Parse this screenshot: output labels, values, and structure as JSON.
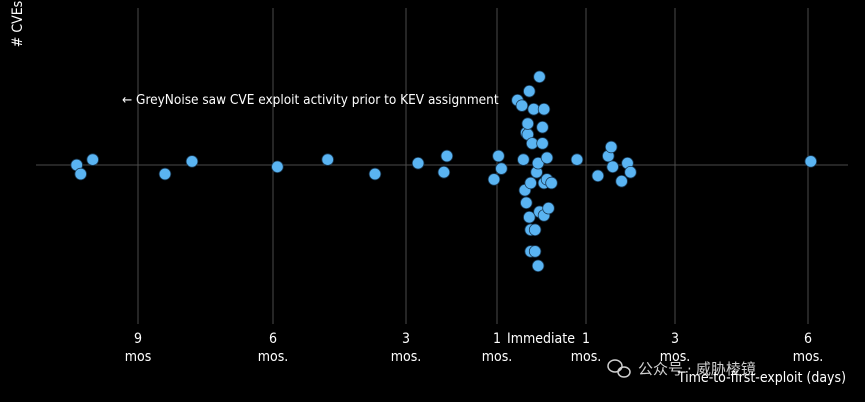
{
  "chart_data": {
    "type": "scatter",
    "subtype": "beeswarm",
    "ylabel": "# CVEs",
    "xlabel": "Time-to-first-exploit (days)",
    "annotation": "← GreyNoise saw CVE exploit activity prior to KEV assignment",
    "grid": true,
    "marker_color": "#5ab4f2",
    "ticks": [
      {
        "top": "9",
        "bottom": "mos",
        "x": -270
      },
      {
        "top": "6",
        "bottom": "mos.",
        "x": -180
      },
      {
        "top": "3",
        "bottom": "mos.",
        "x": -90
      },
      {
        "top": "1",
        "bottom": "mos.",
        "x": -30
      },
      {
        "top": "Immediate",
        "bottom": "",
        "x": 0
      },
      {
        "top": "1",
        "bottom": "mos.",
        "x": 30
      },
      {
        "top": "3",
        "bottom": "mos.",
        "x": 90
      },
      {
        "top": "6",
        "bottom": "mos.",
        "x": 180
      }
    ],
    "points": [
      {
        "x": -316,
        "y": 0
      },
      {
        "x": -313,
        "y": -0.5
      },
      {
        "x": -304,
        "y": 0.3
      },
      {
        "x": -252,
        "y": -0.5
      },
      {
        "x": -234,
        "y": 0.2
      },
      {
        "x": -177,
        "y": -0.1
      },
      {
        "x": -143,
        "y": 0.3
      },
      {
        "x": -111,
        "y": -0.5
      },
      {
        "x": -82,
        "y": 0.1
      },
      {
        "x": -65,
        "y": -0.4
      },
      {
        "x": -63,
        "y": 0.5
      },
      {
        "x": -32,
        "y": -0.8
      },
      {
        "x": -29,
        "y": 0.5
      },
      {
        "x": -27,
        "y": -0.2
      },
      {
        "x": -16,
        "y": 3.6
      },
      {
        "x": -13,
        "y": 3.3
      },
      {
        "x": -10,
        "y": 1.8
      },
      {
        "x": -10,
        "y": -2.1
      },
      {
        "x": -12,
        "y": 0.3
      },
      {
        "x": -11,
        "y": -1.4
      },
      {
        "x": -9,
        "y": 1.7
      },
      {
        "x": -9,
        "y": 2.3
      },
      {
        "x": -8,
        "y": 4.1
      },
      {
        "x": -8,
        "y": -2.9
      },
      {
        "x": -7,
        "y": -4.8
      },
      {
        "x": -7,
        "y": -3.6
      },
      {
        "x": -7,
        "y": -1.0
      },
      {
        "x": -6,
        "y": 1.2
      },
      {
        "x": -5,
        "y": 3.1
      },
      {
        "x": -4,
        "y": -4.8
      },
      {
        "x": -4,
        "y": -3.6
      },
      {
        "x": -3,
        "y": -0.4
      },
      {
        "x": -2,
        "y": 0.1
      },
      {
        "x": -1,
        "y": 4.9
      },
      {
        "x": -2,
        "y": -5.6
      },
      {
        "x": -1,
        "y": -2.6
      },
      {
        "x": 1,
        "y": 1.2
      },
      {
        "x": 1,
        "y": 2.1
      },
      {
        "x": 2,
        "y": 3.1
      },
      {
        "x": 2,
        "y": -1.0
      },
      {
        "x": 2,
        "y": -2.8
      },
      {
        "x": 4,
        "y": -0.8
      },
      {
        "x": 4,
        "y": 0.4
      },
      {
        "x": 5,
        "y": -2.4
      },
      {
        "x": 7,
        "y": -1.0
      },
      {
        "x": 24,
        "y": 0.3
      },
      {
        "x": 38,
        "y": -0.6
      },
      {
        "x": 45,
        "y": 0.5
      },
      {
        "x": 47,
        "y": 1.0
      },
      {
        "x": 48,
        "y": -0.1
      },
      {
        "x": 54,
        "y": -0.9
      },
      {
        "x": 58,
        "y": 0.1
      },
      {
        "x": 60,
        "y": -0.4
      },
      {
        "x": 182,
        "y": 0.2
      }
    ]
  },
  "watermark": "公众号 · 威胁棱镜"
}
